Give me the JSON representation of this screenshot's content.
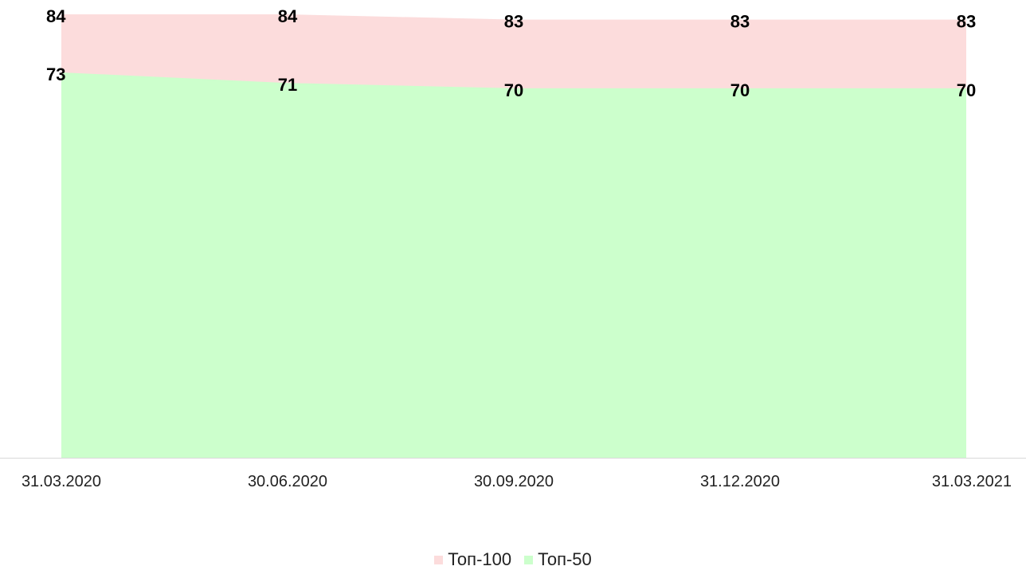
{
  "chart_data": {
    "type": "area",
    "categories": [
      "31.03.2020",
      "30.06.2020",
      "30.09.2020",
      "31.12.2020",
      "31.03.2021"
    ],
    "series": [
      {
        "name": "Топ-100",
        "values": [
          84,
          84,
          83,
          83,
          83
        ],
        "color": "#fcdcdc"
      },
      {
        "name": "Топ-50",
        "values": [
          73,
          71,
          70,
          70,
          70
        ],
        "color": "#ccffcc"
      }
    ],
    "ylim": [
      0,
      84
    ],
    "grid": false,
    "legend_position": "bottom",
    "title": "",
    "xlabel": "",
    "ylabel": "",
    "axis_color": "#d9d9d9"
  }
}
